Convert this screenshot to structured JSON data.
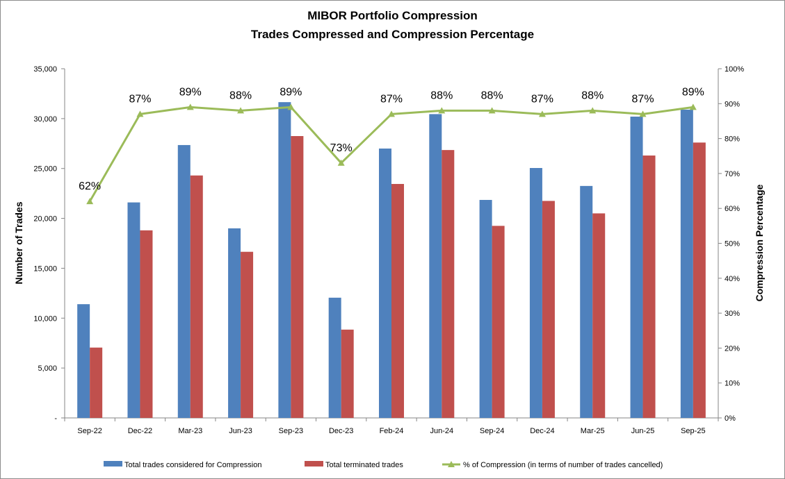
{
  "chart_data": {
    "type": "bar",
    "title": "MIBOR Portfolio Compression",
    "subtitle": "Trades Compressed and Compression Percentage",
    "ylabel": "Number of Trades",
    "y2label": "Compression Percentage",
    "ylim": [
      0,
      35000
    ],
    "y2lim": [
      0,
      100
    ],
    "yticks": [
      {
        "value": 0,
        "label": "-"
      },
      {
        "value": 5000,
        "label": "5,000"
      },
      {
        "value": 10000,
        "label": "10,000"
      },
      {
        "value": 15000,
        "label": "15,000"
      },
      {
        "value": 20000,
        "label": "20,000"
      },
      {
        "value": 25000,
        "label": "25,000"
      },
      {
        "value": 30000,
        "label": "30,000"
      },
      {
        "value": 35000,
        "label": "35,000"
      }
    ],
    "y2ticks": [
      {
        "value": 0,
        "label": "0%"
      },
      {
        "value": 10,
        "label": "10%"
      },
      {
        "value": 20,
        "label": "20%"
      },
      {
        "value": 30,
        "label": "30%"
      },
      {
        "value": 40,
        "label": "40%"
      },
      {
        "value": 50,
        "label": "50%"
      },
      {
        "value": 60,
        "label": "60%"
      },
      {
        "value": 70,
        "label": "70%"
      },
      {
        "value": 80,
        "label": "80%"
      },
      {
        "value": 90,
        "label": "90%"
      },
      {
        "value": 100,
        "label": "100%"
      }
    ],
    "categories": [
      "Sep-22",
      "Dec-22",
      "Mar-23",
      "Jun-23",
      "Sep-23",
      "Dec-23",
      "Feb-24",
      "Jun-24",
      "Sep-24",
      "Dec-24",
      "Mar-25",
      "Jun-25",
      "Sep-25"
    ],
    "series": [
      {
        "name": "Total trades considered for Compression",
        "kind": "bar",
        "color": "#4f81bd",
        "values": [
          11400,
          21600,
          27350,
          19000,
          31650,
          12050,
          27000,
          30450,
          21850,
          25050,
          23250,
          30200,
          30900
        ]
      },
      {
        "name": "Total terminated trades",
        "kind": "bar",
        "color": "#c0504d",
        "values": [
          7050,
          18800,
          24300,
          16650,
          28250,
          8850,
          23450,
          26850,
          19250,
          21750,
          20500,
          26300,
          27600
        ]
      },
      {
        "name": "% of Compression (in terms of number of trades cancelled)",
        "kind": "line",
        "axis": "y2",
        "color": "#9bbb59",
        "values": [
          62,
          87,
          89,
          88,
          89,
          73,
          87,
          88,
          88,
          87,
          88,
          87,
          89
        ],
        "labels": [
          "62%",
          "87%",
          "89%",
          "88%",
          "89%",
          "73%",
          "87%",
          "88%",
          "88%",
          "87%",
          "88%",
          "87%",
          "89%"
        ]
      }
    ],
    "legend_position": "bottom",
    "grid": false
  }
}
